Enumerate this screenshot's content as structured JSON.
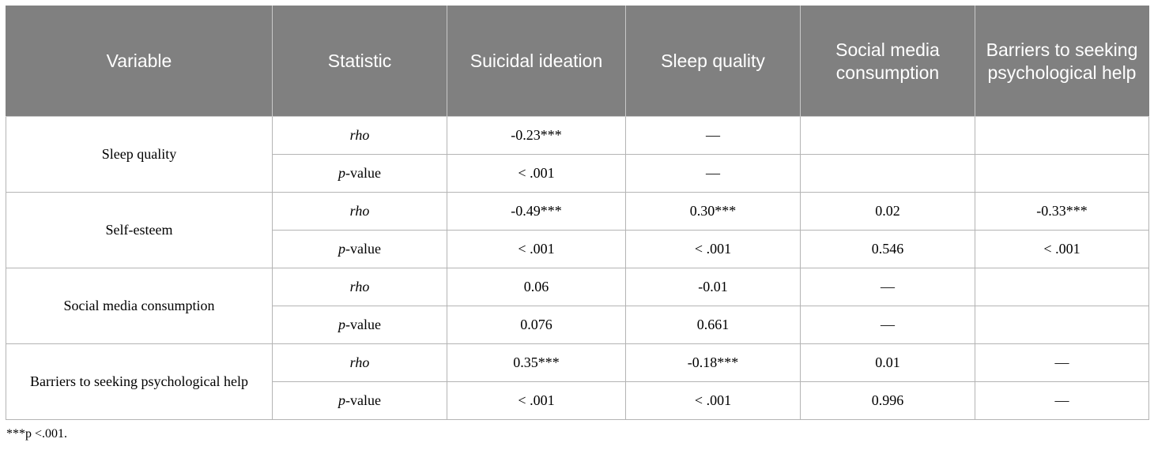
{
  "table": {
    "headers": [
      "Variable",
      "Statistic",
      "Suicidal ideation",
      "Sleep quality",
      "Social media consumption",
      "Barriers to seeking psychological help"
    ],
    "rows": [
      {
        "variable": "Sleep quality",
        "rho_label": "rho",
        "pvalue_label": {
          "p": "p",
          "rest": "-value"
        },
        "rho": [
          "-0.23***",
          "—",
          "",
          ""
        ],
        "pvalue": [
          "< .001",
          "—",
          "",
          ""
        ]
      },
      {
        "variable": "Self-esteem",
        "rho_label": "rho",
        "pvalue_label": {
          "p": "p",
          "rest": "-value"
        },
        "rho": [
          "-0.49***",
          "0.30***",
          "0.02",
          "-0.33***"
        ],
        "pvalue": [
          "< .001",
          "< .001",
          "0.546",
          "< .001"
        ]
      },
      {
        "variable": "Social media consumption",
        "rho_label": "rho",
        "pvalue_label": {
          "p": "p",
          "rest": "-value"
        },
        "rho": [
          "0.06",
          "-0.01",
          "—",
          ""
        ],
        "pvalue": [
          "0.076",
          "0.661",
          "—",
          ""
        ]
      },
      {
        "variable": "Barriers to seeking psychological help",
        "rho_label": "rho",
        "pvalue_label": {
          "p": "p",
          "rest": "-value"
        },
        "rho": [
          "0.35***",
          "-0.18***",
          "0.01",
          "—"
        ],
        "pvalue": [
          "< .001",
          "< .001",
          "0.996",
          "—"
        ]
      }
    ]
  },
  "footnote": "***p <.001.",
  "colors": {
    "header_bg": "#808080",
    "header_text": "#ffffff",
    "border": "#b4b4b4"
  }
}
